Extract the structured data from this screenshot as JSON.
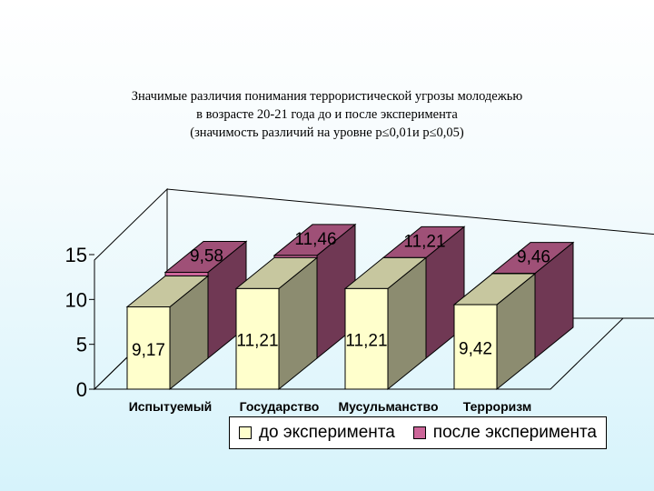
{
  "chart_data": {
    "type": "bar",
    "title_lines": [
      "Значимые различия понимания террористической угрозы молодежью",
      "в возрасте 20-21 года до и после эксперимента",
      "(значимость различий на уровне p≤0,01и p≤0,05)"
    ],
    "categories": [
      "Испытуемый",
      "Государство",
      "Мусульманство",
      "Терроризм"
    ],
    "series": [
      {
        "name": "до эксперимента",
        "values": [
          9.17,
          11.21,
          11.21,
          9.42
        ],
        "labels": [
          "9,17",
          "11,21",
          "11,21",
          "9,42"
        ],
        "color": "#ffffcc"
      },
      {
        "name": "после эксперимента",
        "values": [
          9.58,
          11.46,
          11.21,
          9.46
        ],
        "labels": [
          "9,58",
          "11,46",
          "11,21",
          "9,46"
        ],
        "color": "#cc6699"
      }
    ],
    "y_ticks": [
      0,
      5,
      10,
      15
    ],
    "ylim": [
      0,
      15
    ],
    "chart_kind": "3d-bar",
    "grid": false,
    "legend_position": "bottom"
  }
}
